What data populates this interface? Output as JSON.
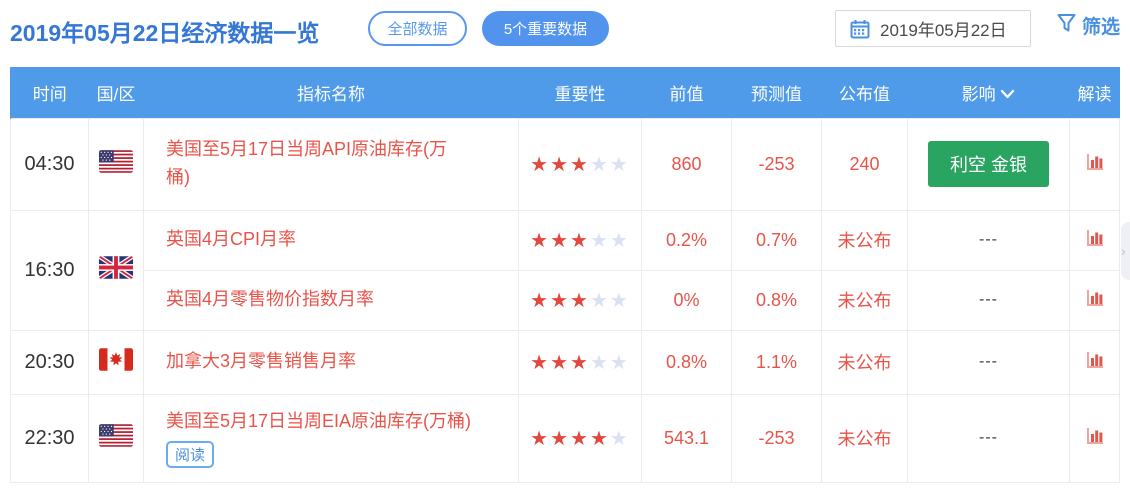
{
  "topbar": {
    "title": "2019年05月22日经济数据一览",
    "tab_all": "全部数据",
    "tab_important": "5个重要数据",
    "date_value": "2019年05月22日",
    "filter_label": "筛选"
  },
  "colors": {
    "title_blue": "#3577d4",
    "header_blue": "#4f9bea",
    "accent_blue": "#4a90e2",
    "value_red": "#e8544a",
    "star_red": "#e2483d",
    "star_empty": "#d9e1f2",
    "impact_green": "#29a561"
  },
  "icons": {
    "calendar": "calendar-icon",
    "funnel": "filter-funnel-icon",
    "chevron_down": "chevron-down-icon",
    "bar_chart": "bar-chart-icon",
    "flags": [
      "us-flag",
      "uk-flag",
      "ca-flag",
      "us-flag"
    ]
  },
  "table": {
    "headers": {
      "time": "时间",
      "region": "国/区",
      "indicator": "指标名称",
      "importance": "重要性",
      "previous": "前值",
      "forecast": "预测值",
      "published": "公布值",
      "impact": "影响",
      "interpret": "解读"
    },
    "groups": [
      {
        "time": "04:30",
        "country": "美国",
        "rows": [
          {
            "name": "美国至5月17日当周API原油库存(万桶)",
            "stars": 3,
            "previous": "860",
            "forecast": "-253",
            "published": "240",
            "impact": "利空 金银",
            "impact_style": "green-button"
          }
        ]
      },
      {
        "time": "16:30",
        "country": "英国",
        "rows": [
          {
            "name": "英国4月CPI月率",
            "stars": 3,
            "previous": "0.2%",
            "forecast": "0.7%",
            "published": "未公布",
            "impact": "---"
          },
          {
            "name": "英国4月零售物价指数月率",
            "stars": 3,
            "previous": "0%",
            "forecast": "0.8%",
            "published": "未公布",
            "impact": "---"
          }
        ]
      },
      {
        "time": "20:30",
        "country": "加拿大",
        "rows": [
          {
            "name": "加拿大3月零售销售月率",
            "stars": 3,
            "previous": "0.8%",
            "forecast": "1.1%",
            "published": "未公布",
            "impact": "---"
          }
        ]
      },
      {
        "time": "22:30",
        "country": "美国",
        "rows": [
          {
            "name": "美国至5月17日当周EIA原油库存(万桶)",
            "read_tag": "阅读",
            "stars": 4,
            "previous": "543.1",
            "forecast": "-253",
            "published": "未公布",
            "impact": "---"
          }
        ]
      }
    ]
  }
}
